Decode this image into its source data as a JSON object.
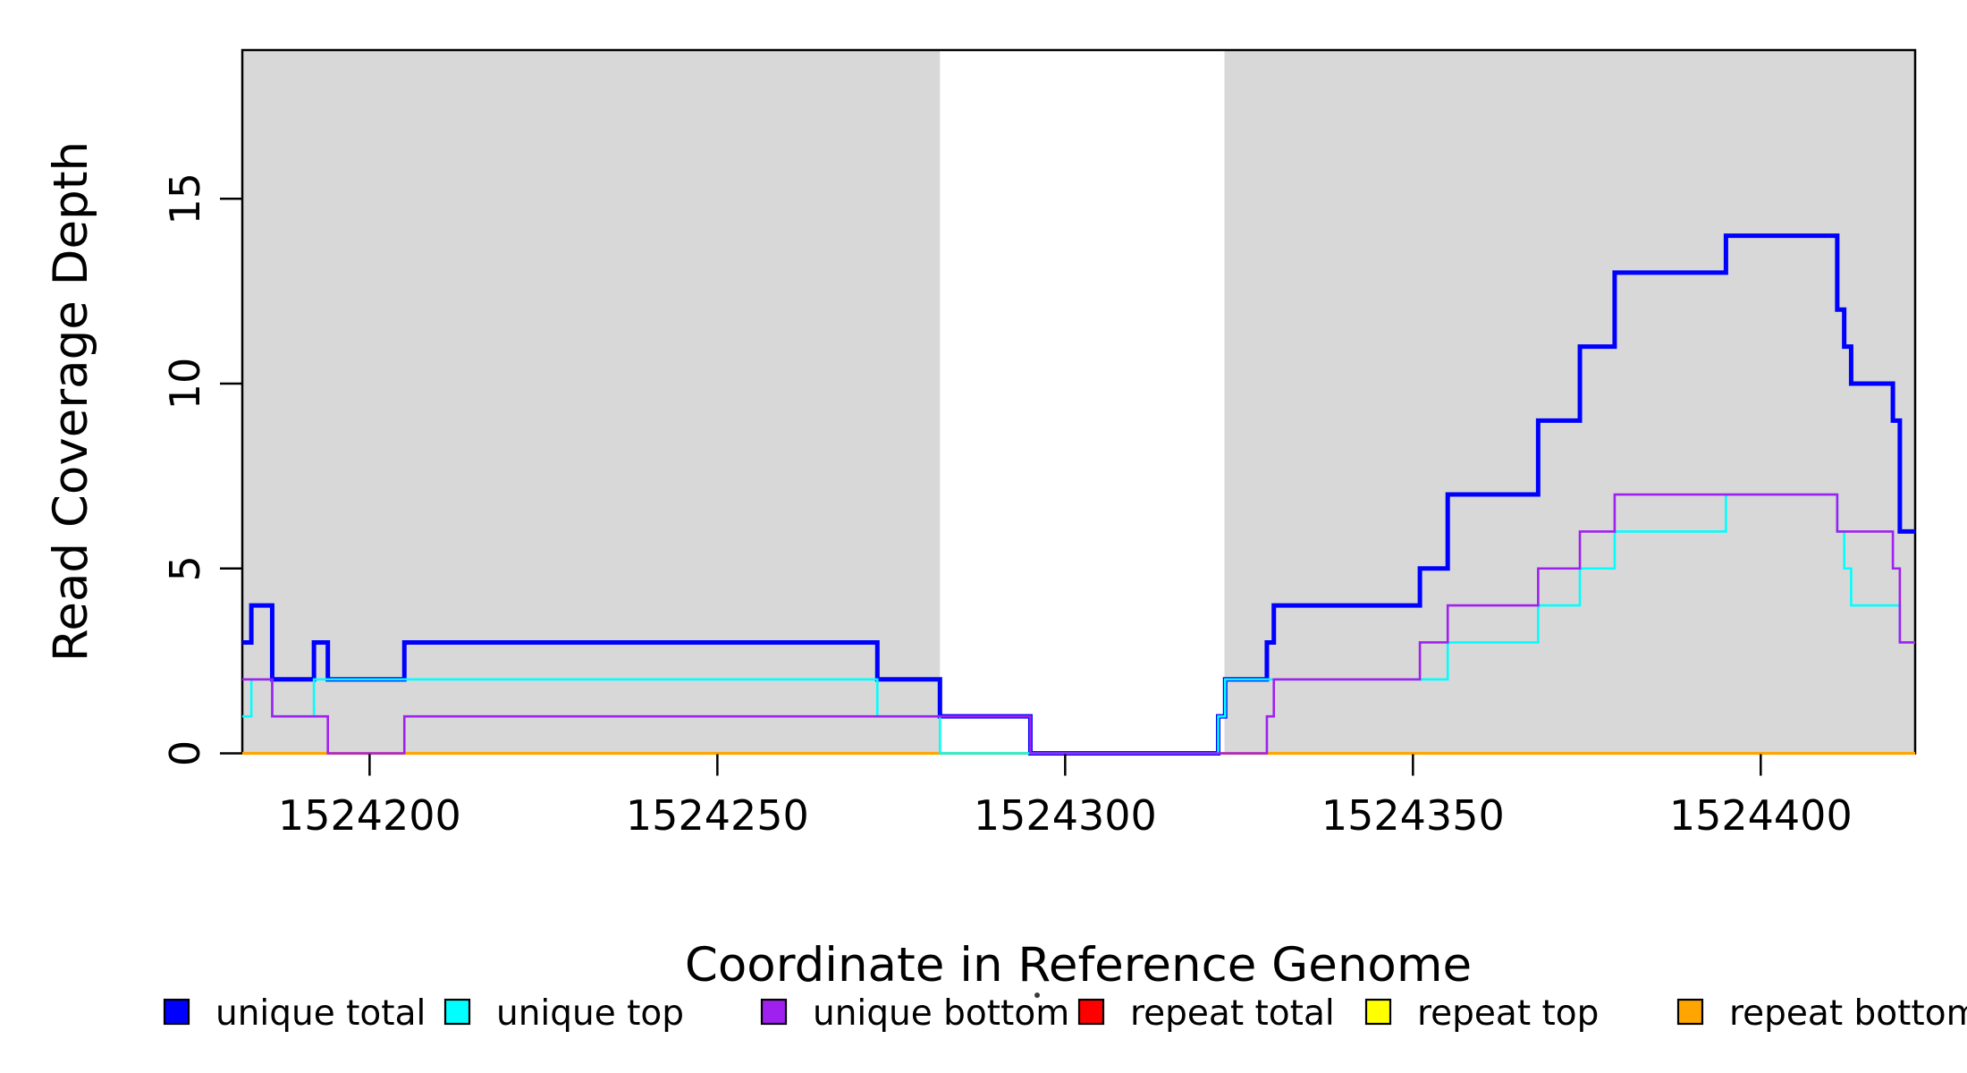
{
  "chart_data": {
    "type": "line",
    "subtype": "step-after",
    "title": "",
    "xlabel": "Coordinate in Reference Genome",
    "ylabel": "Read Coverage Depth",
    "x_range": [
      1524181.7,
      1524422.2
    ],
    "y_range": [
      0,
      19.02
    ],
    "x_ticks": [
      1524200,
      1524250,
      1524300,
      1524350,
      1524400
    ],
    "x_tick_labels": [
      "1524200",
      "1524250",
      "1524300",
      "1524350",
      "1524400"
    ],
    "y_ticks": [
      0,
      5,
      10,
      15
    ],
    "y_tick_labels": [
      "0",
      "5",
      "10",
      "15"
    ],
    "grid": "off",
    "shaded_regions": [
      {
        "name": "unique-region-left",
        "from": 1524181.7,
        "to": 1524282
      },
      {
        "name": "unique-region-right",
        "from": 1524322.9,
        "to": 1524422.2
      }
    ],
    "series": [
      {
        "name": "unique total",
        "color": "#0000FF",
        "lw": 5,
        "points": [
          [
            1524181.7,
            3
          ],
          [
            1524183,
            4
          ],
          [
            1524186,
            2
          ],
          [
            1524192,
            3
          ],
          [
            1524194,
            2
          ],
          [
            1524205,
            3
          ],
          [
            1524273,
            2
          ],
          [
            1524282,
            1
          ],
          [
            1524295,
            0
          ],
          [
            1524322,
            1
          ],
          [
            1524323,
            2
          ],
          [
            1524329,
            3
          ],
          [
            1524330,
            4
          ],
          [
            1524351,
            5
          ],
          [
            1524355,
            7
          ],
          [
            1524368,
            9
          ],
          [
            1524374,
            11
          ],
          [
            1524379,
            13
          ],
          [
            1524395,
            14
          ],
          [
            1524411,
            12
          ],
          [
            1524412,
            11
          ],
          [
            1524413,
            10
          ],
          [
            1524419,
            9
          ],
          [
            1524420,
            6
          ]
        ]
      },
      {
        "name": "unique top",
        "color": "#00FFFF",
        "lw": 2.6,
        "points": [
          [
            1524181.7,
            1
          ],
          [
            1524183,
            2
          ],
          [
            1524186,
            1
          ],
          [
            1524192,
            2
          ],
          [
            1524273,
            1
          ],
          [
            1524282,
            0
          ],
          [
            1524322,
            1
          ],
          [
            1524323,
            2
          ],
          [
            1524355,
            3
          ],
          [
            1524368,
            4
          ],
          [
            1524374,
            5
          ],
          [
            1524379,
            6
          ],
          [
            1524395,
            7
          ],
          [
            1524411,
            6
          ],
          [
            1524412,
            5
          ],
          [
            1524413,
            4
          ],
          [
            1524420,
            3
          ]
        ]
      },
      {
        "name": "unique bottom",
        "color": "#A020F0",
        "lw": 2.6,
        "points": [
          [
            1524181.7,
            2
          ],
          [
            1524186,
            1
          ],
          [
            1524194,
            0
          ],
          [
            1524205,
            1
          ],
          [
            1524295,
            0
          ],
          [
            1524329,
            1
          ],
          [
            1524330,
            2
          ],
          [
            1524351,
            3
          ],
          [
            1524355,
            4
          ],
          [
            1524368,
            5
          ],
          [
            1524374,
            6
          ],
          [
            1524379,
            7
          ],
          [
            1524411,
            6
          ],
          [
            1524419,
            5
          ],
          [
            1524420,
            3
          ]
        ]
      },
      {
        "name": "repeat total",
        "color": "#FF0000",
        "lw": 2.6,
        "points": [
          [
            1524181.7,
            0
          ]
        ]
      },
      {
        "name": "repeat top",
        "color": "#FFFF00",
        "lw": 2.6,
        "points": [
          [
            1524181.7,
            0
          ]
        ]
      },
      {
        "name": "repeat bottom",
        "color": "#FFA500",
        "lw": 3.2,
        "points": [
          [
            1524181.7,
            0
          ]
        ]
      }
    ],
    "draw_order": [
      "repeat total",
      "repeat top",
      "repeat bottom",
      "unique total",
      "unique top",
      "unique bottom"
    ],
    "legend": {
      "position": "bottom",
      "entries": [
        {
          "label": "unique total",
          "color": "#0000FF"
        },
        {
          "label": "unique top",
          "color": "#00FFFF"
        },
        {
          "label": "unique bottom",
          "color": "#A020F0"
        },
        {
          "label": "repeat total",
          "color": "#FF0000"
        },
        {
          "label": "repeat top",
          "color": "#FFFF00"
        },
        {
          "label": "repeat bottom",
          "color": "#FFA500"
        }
      ]
    }
  },
  "colors": {
    "shade": "#D8D8D8",
    "box": "#000000",
    "background": "#FFFFFF"
  }
}
